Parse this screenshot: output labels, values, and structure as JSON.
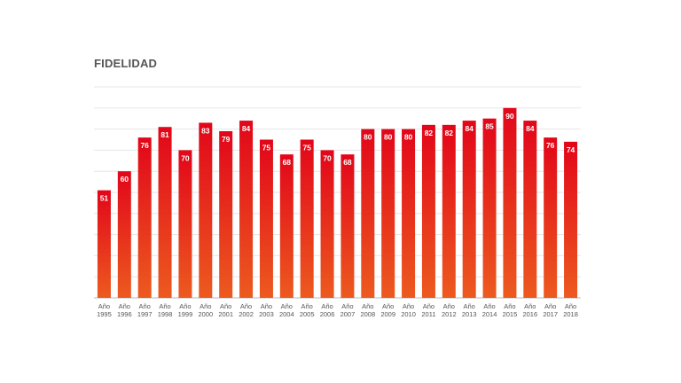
{
  "chart_data": {
    "type": "bar",
    "title": "FIDELIDAD",
    "xlabel": "",
    "ylabel": "",
    "ylim": [
      0,
      100
    ],
    "grid": true,
    "legend": "none",
    "categories": [
      [
        "Año",
        "1995"
      ],
      [
        "Año",
        "1996"
      ],
      [
        "Año",
        "1997"
      ],
      [
        "Año",
        "1998"
      ],
      [
        "Año",
        "1999"
      ],
      [
        "Año",
        "2000"
      ],
      [
        "Año",
        "2001"
      ],
      [
        "Año",
        "2002"
      ],
      [
        "Año",
        "2003"
      ],
      [
        "Año",
        "2004"
      ],
      [
        "Año",
        "2005"
      ],
      [
        "Año",
        "2006"
      ],
      [
        "Año",
        "2007"
      ],
      [
        "Año",
        "2008"
      ],
      [
        "Año",
        "2009"
      ],
      [
        "Año",
        "2010"
      ],
      [
        "Año",
        "2011"
      ],
      [
        "Año",
        "2012"
      ],
      [
        "Año",
        "2013"
      ],
      [
        "Año",
        "2014"
      ],
      [
        "Año",
        "2015"
      ],
      [
        "Año",
        "2016"
      ],
      [
        "Año",
        "2017"
      ],
      [
        "Año",
        "2018"
      ]
    ],
    "values": [
      51,
      60,
      76,
      81,
      70,
      83,
      79,
      84,
      75,
      68,
      75,
      70,
      68,
      80,
      80,
      80,
      82,
      82,
      84,
      85,
      90,
      84,
      76,
      74
    ],
    "colors": {
      "bar_top": "#e2061a",
      "bar_bottom": "#ec5a1f",
      "grid": "#e6e6e6",
      "axis": "#bbbbbb"
    }
  }
}
